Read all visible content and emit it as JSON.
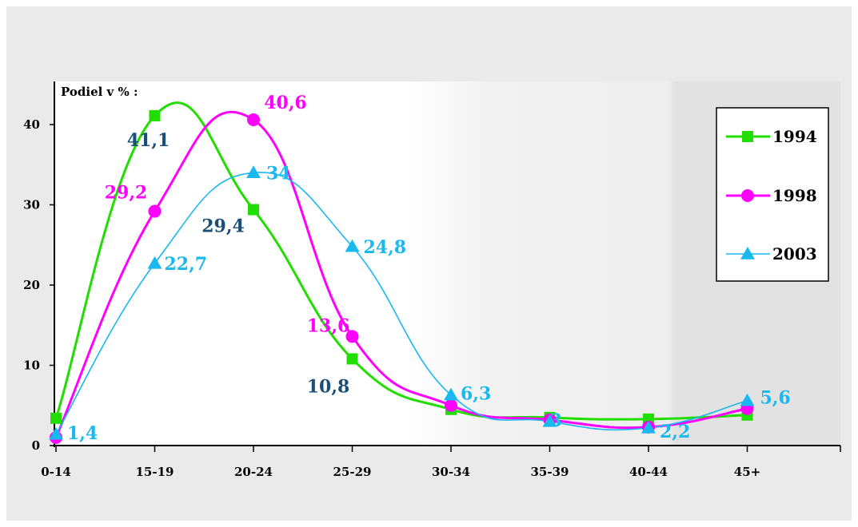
{
  "chart_data": {
    "type": "line",
    "ylabel": "Podiel v % :",
    "categories": [
      "0-14",
      "15-19",
      "20-24",
      "25-29",
      "30-34",
      "35-39",
      "40-44",
      "45+"
    ],
    "yticks": [
      "0",
      "10",
      "20",
      "30",
      "40"
    ],
    "ylim": [
      0,
      45
    ],
    "smooth": true,
    "grid": false,
    "legend_position": "right",
    "series": [
      {
        "name": "1994",
        "color": "#22dd00",
        "marker": "square",
        "values": [
          3.4,
          41.1,
          29.4,
          10.8,
          4.5,
          3.5,
          3.3,
          3.8
        ],
        "labels": [
          "",
          "41,1",
          "29,4",
          "10,8",
          "",
          "",
          "",
          ""
        ],
        "label_color": "#1a4f7a"
      },
      {
        "name": "1998",
        "color": "#ff00ff",
        "marker": "circle",
        "values": [
          1.0,
          29.2,
          40.6,
          13.6,
          5.0,
          3.2,
          2.3,
          4.6
        ],
        "labels": [
          "",
          "29,2",
          "40,6",
          "13,6",
          "",
          "",
          "",
          ""
        ],
        "label_color": "#ff00ff"
      },
      {
        "name": "2003",
        "color": "#19b8ee",
        "marker": "triangle",
        "values": [
          1.4,
          22.7,
          34.0,
          24.8,
          6.3,
          3.0,
          2.2,
          5.6
        ],
        "labels": [
          "1,4",
          "22,7",
          "34",
          "24,8",
          "6,3",
          "3",
          "2,2",
          "5,6"
        ],
        "label_color": "#19b8ee"
      }
    ]
  }
}
